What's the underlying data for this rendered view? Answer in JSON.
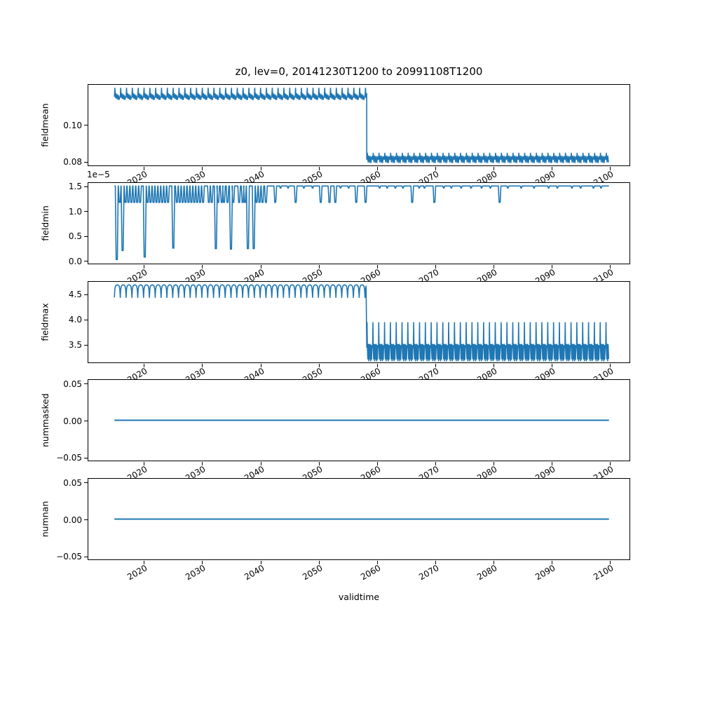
{
  "title": "z0, lev=0, 20141230T1200 to 20991108T1200",
  "xlabel": "validtime",
  "line_color": "#1f77b4",
  "chart_data": {
    "type": "line",
    "grid": false,
    "legend": false,
    "x_axis": {
      "label": "validtime",
      "lim": [
        2010.4,
        2103.5
      ],
      "ticks": [
        2020,
        2030,
        2040,
        2050,
        2060,
        2070,
        2080,
        2090,
        2100
      ],
      "tick_labels": [
        "2020",
        "2030",
        "2040",
        "2050",
        "2060",
        "2070",
        "2080",
        "2090",
        "2100"
      ],
      "tick_rotation_deg": 30
    },
    "subplots": [
      {
        "name": "fieldmean",
        "ylabel": "fieldmean",
        "ylim": [
          0.0775,
          0.122
        ],
        "yticks": [
          {
            "v": 0.1,
            "label": "0.10"
          },
          {
            "v": 0.08,
            "label": "0.08"
          }
        ],
        "series": {
          "type": "two_phase",
          "summary": "annual oscillation ~0.1136-0.1198 from 2015 to 2058.3, steps down to ~0.0794-0.0845 until 2099.9",
          "phase1": {
            "from": 2015.0,
            "to": 2058.3,
            "pattern": [
              [
                0,
                0.1152
              ],
              [
                0.08,
                0.1198
              ],
              [
                0.16,
                0.1148
              ],
              [
                0.28,
                0.1168
              ],
              [
                0.36,
                0.1142
              ],
              [
                0.5,
                0.1163
              ],
              [
                0.6,
                0.1138
              ],
              [
                0.72,
                0.1158
              ],
              [
                0.8,
                0.1136
              ],
              [
                0.92,
                0.115
              ],
              [
                1,
                0.1152
              ]
            ]
          },
          "phase2": {
            "from": 2058.3,
            "to": 2099.85,
            "pattern": [
              [
                0,
                0.0812
              ],
              [
                0.1,
                0.0845
              ],
              [
                0.22,
                0.0798
              ],
              [
                0.35,
                0.083
              ],
              [
                0.48,
                0.0795
              ],
              [
                0.6,
                0.0828
              ],
              [
                0.72,
                0.0794
              ],
              [
                0.85,
                0.0826
              ],
              [
                1,
                0.0812
              ]
            ]
          }
        }
      },
      {
        "name": "fieldmin",
        "ylabel": "fieldmin",
        "offset_text": "1e−5",
        "units_multiplier": "1e-5",
        "ylim": [
          -0.075,
          1.575
        ],
        "yticks": [
          {
            "v": 1.5,
            "label": "1.5"
          },
          {
            "v": 1.0,
            "label": "1.0"
          },
          {
            "v": 0.5,
            "label": "0.5"
          },
          {
            "v": 0.0,
            "label": "0.0"
          }
        ],
        "series": {
          "type": "baseline_dips",
          "summary": "baseline 1.5e-5 from 2015 to 2099.9; frequent notches to ~1.17e-5 before 2042, sparse after; deep spikes toward 0 between 2015 and 2039",
          "from": 2015.0,
          "to": 2099.85,
          "baseline": 1.5,
          "deep_dips": [
            [
              2015.4,
              0.02
            ],
            [
              2016.4,
              0.2
            ],
            [
              2020.2,
              0.07
            ],
            [
              2025.1,
              0.25
            ],
            [
              2032.4,
              0.24
            ],
            [
              2035.0,
              0.23
            ],
            [
              2037.9,
              0.24
            ],
            [
              2038.9,
              0.24
            ]
          ],
          "deep_width": 0.5,
          "medium_value": 1.17,
          "medium_width": 0.45,
          "medium_dips": [
            2015.9,
            2016.9,
            2017.4,
            2017.9,
            2018.4,
            2018.9,
            2019.4,
            2020.7,
            2021.2,
            2021.7,
            2022.2,
            2022.7,
            2023.2,
            2023.7,
            2024.2,
            2025.7,
            2026.2,
            2026.7,
            2027.2,
            2027.7,
            2028.2,
            2028.7,
            2029.2,
            2029.7,
            2030.2,
            2031.2,
            2031.7,
            2032.8,
            2033.4,
            2033.8,
            2034.4,
            2035.4,
            2036.4,
            2037.0,
            2037.4,
            2039.4,
            2039.9,
            2040.4,
            2041.0,
            2042.6,
            2046.1,
            2050.4,
            2051.9,
            2052.9,
            2056.5,
            2058.1,
            2066.1,
            2069.9,
            2081.1
          ],
          "tiny_value": 1.46,
          "tiny_width": 0.3,
          "tiny_dips": [
            2043.5,
            2044.8,
            2047.5,
            2049.0,
            2053.8,
            2055.2,
            2060.5,
            2061.8,
            2063.2,
            2064.5,
            2067.3,
            2068.2,
            2071.5,
            2072.8,
            2074.5,
            2076.2,
            2078.0,
            2079.5,
            2082.5,
            2084.8,
            2087.0,
            2089.5,
            2091.0,
            2093.5,
            2095.0,
            2097.2,
            2098.5
          ]
        }
      },
      {
        "name": "fieldmax",
        "ylabel": "fieldmax",
        "ylim": [
          3.126,
          4.754
        ],
        "yticks": [
          {
            "v": 4.5,
            "label": "4.5"
          },
          {
            "v": 4.0,
            "label": "4.0"
          },
          {
            "v": 3.5,
            "label": "3.5"
          }
        ],
        "series": {
          "type": "two_phase",
          "summary": "rounded annual oscillation 4.43-4.68 from 2015 to 2058.3, steps down to dense oscillation 3.17-3.93 until 2099.9",
          "phase1": {
            "from": 2015.0,
            "to": 2058.3,
            "pattern": [
              [
                0,
                4.43
              ],
              [
                0.07,
                4.59
              ],
              [
                0.18,
                4.655
              ],
              [
                0.32,
                4.672
              ],
              [
                0.5,
                4.68
              ],
              [
                0.68,
                4.672
              ],
              [
                0.82,
                4.655
              ],
              [
                0.93,
                4.58
              ],
              [
                1,
                4.43
              ]
            ]
          },
          "phase2": {
            "from": 2058.3,
            "to": 2099.85,
            "pattern": [
              [
                0,
                3.44
              ],
              [
                0.05,
                3.93
              ],
              [
                0.1,
                3.44
              ],
              [
                0.18,
                3.21
              ],
              [
                0.26,
                3.5
              ],
              [
                0.34,
                3.17
              ],
              [
                0.42,
                3.49
              ],
              [
                0.5,
                3.21
              ],
              [
                0.58,
                3.5
              ],
              [
                0.66,
                3.17
              ],
              [
                0.74,
                3.48
              ],
              [
                0.82,
                3.2
              ],
              [
                0.9,
                3.47
              ],
              [
                1,
                3.44
              ]
            ]
          }
        }
      },
      {
        "name": "nummasked",
        "ylabel": "nummasked",
        "ylim": [
          -0.0555,
          0.0555
        ],
        "yticks": [
          {
            "v": 0.05,
            "label": "0.05"
          },
          {
            "v": 0.0,
            "label": "0.00"
          },
          {
            "v": -0.05,
            "label": "−0.05"
          }
        ],
        "series": {
          "type": "constant",
          "summary": "constant 0.00 from 2015 to 2099.9",
          "from": 2015.0,
          "to": 2099.85,
          "value": 0.0
        }
      },
      {
        "name": "numnan",
        "ylabel": "numnan",
        "ylim": [
          -0.0555,
          0.0555
        ],
        "yticks": [
          {
            "v": 0.05,
            "label": "0.05"
          },
          {
            "v": 0.0,
            "label": "0.00"
          },
          {
            "v": -0.05,
            "label": "−0.05"
          }
        ],
        "series": {
          "type": "constant",
          "summary": "constant 0.00 from 2015 to 2099.9",
          "from": 2015.0,
          "to": 2099.85,
          "value": 0.0
        }
      }
    ]
  }
}
